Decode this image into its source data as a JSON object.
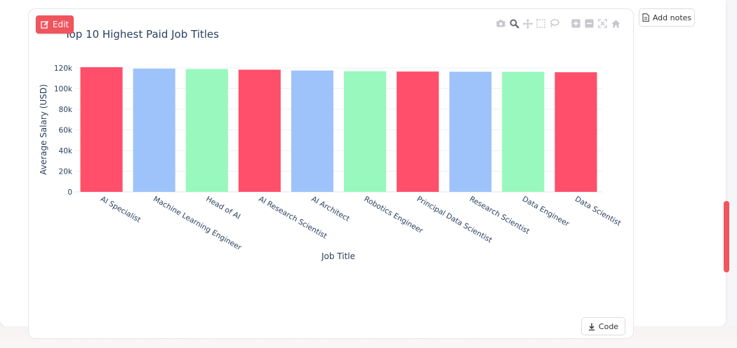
{
  "toolbar": {
    "edit_label": "Edit",
    "notes_label": "Add notes",
    "code_label": "Code"
  },
  "modebar": [
    "camera-icon",
    "zoom-icon",
    "pan-icon",
    "box-select-icon",
    "lasso-icon",
    "zoom-in-icon",
    "zoom-out-icon",
    "autoscale-icon",
    "reset-home-icon"
  ],
  "colors": {
    "red": "#ff4f6a",
    "blue": "#9ec3fa",
    "green": "#99f8bd",
    "accent": "#f0545c"
  },
  "chart_data": {
    "type": "bar",
    "title": "Top 10 Highest Paid Job Titles",
    "xlabel": "Job Title",
    "ylabel": "Average Salary (USD)",
    "ylim": [
      0,
      120000
    ],
    "yticks": [
      {
        "v": 0,
        "label": "0"
      },
      {
        "v": 20000,
        "label": "20k"
      },
      {
        "v": 40000,
        "label": "40k"
      },
      {
        "v": 60000,
        "label": "60k"
      },
      {
        "v": 80000,
        "label": "80k"
      },
      {
        "v": 100000,
        "label": "100k"
      },
      {
        "v": 120000,
        "label": "120k"
      }
    ],
    "categories": [
      "AI Specialist",
      "Machine Learning Engineer",
      "Head of AI",
      "AI Research Scientist",
      "AI Architect",
      "Robotics Engineer",
      "Principal Data Scientist",
      "Research Scientist",
      "Data Engineer",
      "Data Scientist"
    ],
    "values": [
      120700,
      119300,
      118900,
      118300,
      117500,
      116800,
      116500,
      116300,
      116200,
      115800
    ],
    "bar_colors": [
      "#ff4f6a",
      "#9ec3fa",
      "#99f8bd",
      "#ff4f6a",
      "#9ec3fa",
      "#99f8bd",
      "#ff4f6a",
      "#9ec3fa",
      "#99f8bd",
      "#ff4f6a"
    ]
  }
}
